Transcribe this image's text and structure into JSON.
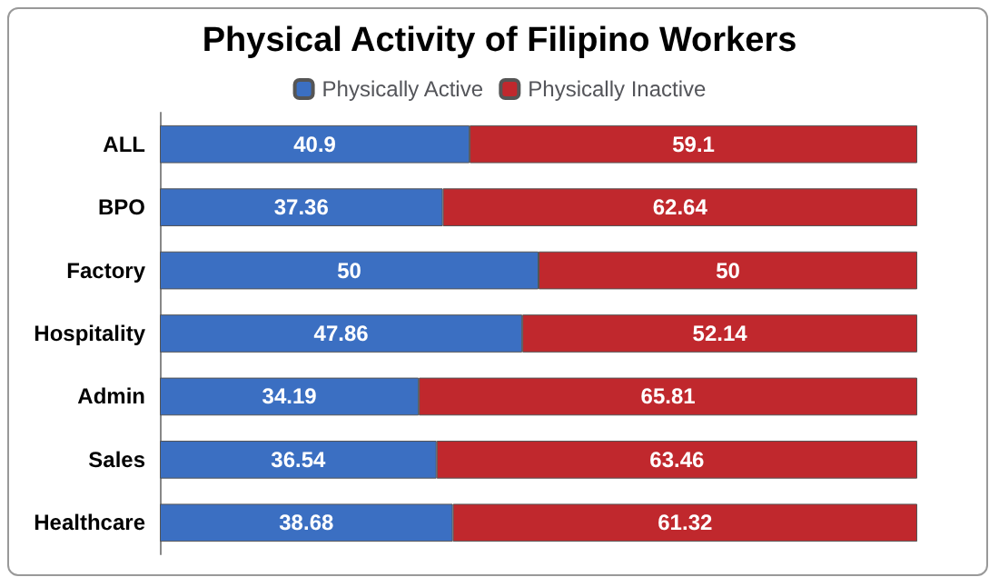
{
  "chart_data": {
    "type": "bar",
    "orientation": "horizontal",
    "stacked": true,
    "title": "Physical Activity of Filipino Workers",
    "categories": [
      "ALL",
      "BPO",
      "Factory",
      "Hospitality",
      "Admin",
      "Sales",
      "Healthcare"
    ],
    "series": [
      {
        "name": "Physically Active",
        "color": "#3b6fc2",
        "values": [
          40.9,
          37.36,
          50,
          47.86,
          34.19,
          36.54,
          38.68
        ]
      },
      {
        "name": "Physically Inactive",
        "color": "#c0282d",
        "values": [
          59.1,
          62.64,
          50,
          52.14,
          65.81,
          63.46,
          61.32
        ]
      }
    ],
    "data_labels": true,
    "legend": "top",
    "tick_labels": "y"
  }
}
